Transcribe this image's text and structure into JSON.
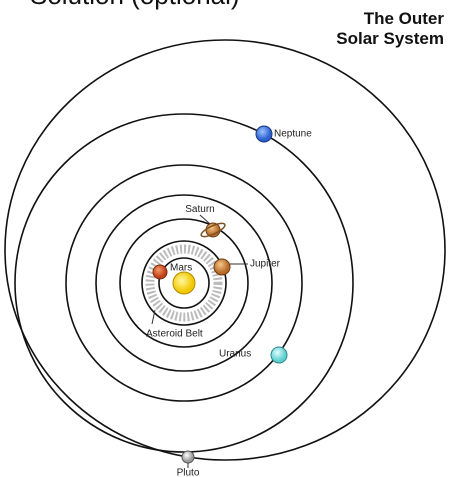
{
  "header": {
    "clipped": "Solution (optional)",
    "title_lines": [
      "The Outer",
      "Solar System"
    ]
  },
  "labels": {
    "neptune": "Neptune",
    "saturn": "Saturn",
    "jupiter": "Jupiter",
    "mars": "Mars",
    "asteroid_belt": "Asteroid Belt",
    "uranus": "Uranus",
    "pluto": "Pluto"
  }
}
